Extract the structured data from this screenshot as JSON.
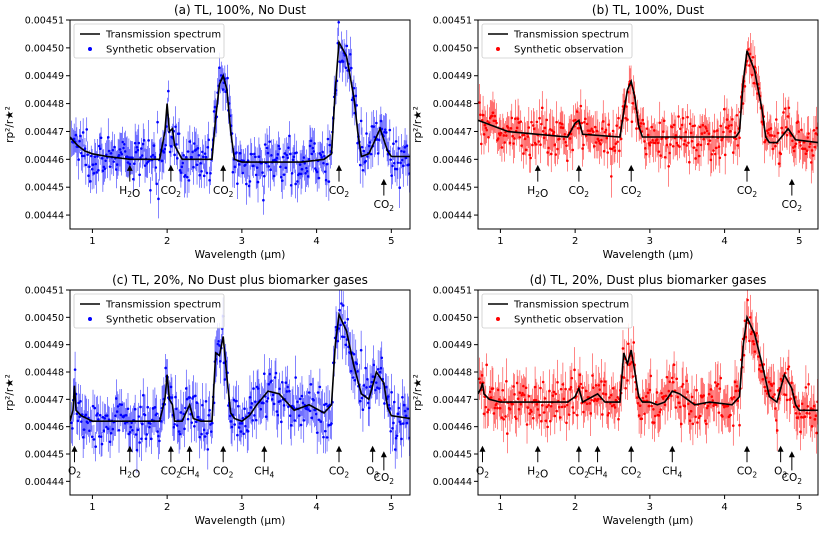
{
  "chart_data": [
    {
      "type": "line+scatter",
      "title": "(a) TL, 100%, No Dust",
      "xlabel": "Wavelength (μm)",
      "ylabel": "rp²/r★²",
      "xlim": [
        0.7,
        5.25
      ],
      "ylim": [
        0.004435,
        0.00451
      ],
      "xticks": [
        1,
        2,
        3,
        4,
        5
      ],
      "yticks": [
        0.00444,
        0.00445,
        0.00446,
        0.00447,
        0.00448,
        0.00449,
        0.0045,
        0.00451
      ],
      "legend": {
        "position": "top-left",
        "entries": [
          "Transmission spectrum",
          "Synthetic observation"
        ]
      },
      "obs_color": "#0000ff",
      "noise": 4.5e-06,
      "spectrum": [
        [
          0.7,
          0.004468
        ],
        [
          0.8,
          0.004465
        ],
        [
          0.9,
          0.004463
        ],
        [
          1.0,
          0.004462
        ],
        [
          1.2,
          0.004461
        ],
        [
          1.5,
          0.00446
        ],
        [
          1.9,
          0.00446
        ],
        [
          1.97,
          0.00447
        ],
        [
          2.0,
          0.00448
        ],
        [
          2.03,
          0.00447
        ],
        [
          2.07,
          0.004471
        ],
        [
          2.1,
          0.004465
        ],
        [
          2.2,
          0.00446
        ],
        [
          2.6,
          0.00446
        ],
        [
          2.65,
          0.004475
        ],
        [
          2.7,
          0.004487
        ],
        [
          2.75,
          0.00449
        ],
        [
          2.8,
          0.004485
        ],
        [
          2.85,
          0.00447
        ],
        [
          2.9,
          0.00446
        ],
        [
          3.0,
          0.004459
        ],
        [
          3.3,
          0.004459
        ],
        [
          3.8,
          0.004459
        ],
        [
          4.1,
          0.00446
        ],
        [
          4.2,
          0.004462
        ],
        [
          4.25,
          0.004485
        ],
        [
          4.3,
          0.004502
        ],
        [
          4.4,
          0.004497
        ],
        [
          4.5,
          0.004482
        ],
        [
          4.55,
          0.00447
        ],
        [
          4.6,
          0.004461
        ],
        [
          4.7,
          0.004462
        ],
        [
          4.85,
          0.004471
        ],
        [
          4.95,
          0.004463
        ],
        [
          5.0,
          0.004461
        ],
        [
          5.25,
          0.004461
        ]
      ],
      "arrows": [
        {
          "x": 1.5,
          "label": "H₂O",
          "yhead": 0.004458,
          "ytail": 0.004452,
          "ylabel": 0.004449
        },
        {
          "x": 2.05,
          "label": "CO₂",
          "yhead": 0.004458,
          "ytail": 0.004452,
          "ylabel": 0.004449
        },
        {
          "x": 2.75,
          "label": "CO₂",
          "yhead": 0.004458,
          "ytail": 0.004452,
          "ylabel": 0.004449
        },
        {
          "x": 4.3,
          "label": "CO₂",
          "yhead": 0.004458,
          "ytail": 0.004452,
          "ylabel": 0.004449
        },
        {
          "x": 4.9,
          "label": "CO₂",
          "yhead": 0.004453,
          "ytail": 0.004447,
          "ylabel": 0.004444
        }
      ]
    },
    {
      "type": "line+scatter",
      "title": "(b) TL, 100%, Dust",
      "xlabel": "Wavelength (μm)",
      "ylabel": "rp²/r★²",
      "xlim": [
        0.7,
        5.25
      ],
      "ylim": [
        0.004435,
        0.00451
      ],
      "xticks": [
        1,
        2,
        3,
        4,
        5
      ],
      "yticks": [
        0.00444,
        0.00445,
        0.00446,
        0.00447,
        0.00448,
        0.00449,
        0.0045,
        0.00451
      ],
      "legend": {
        "position": "top-left",
        "entries": [
          "Transmission spectrum",
          "Synthetic observation"
        ]
      },
      "obs_color": "#ff0000",
      "noise": 4.5e-06,
      "spectrum": [
        [
          0.7,
          0.004474
        ],
        [
          0.9,
          0.004472
        ],
        [
          1.1,
          0.00447
        ],
        [
          1.5,
          0.004469
        ],
        [
          1.9,
          0.004468
        ],
        [
          2.0,
          0.004473
        ],
        [
          2.05,
          0.004474
        ],
        [
          2.1,
          0.004469
        ],
        [
          2.6,
          0.004468
        ],
        [
          2.65,
          0.004477
        ],
        [
          2.7,
          0.004485
        ],
        [
          2.75,
          0.004488
        ],
        [
          2.8,
          0.004482
        ],
        [
          2.85,
          0.004472
        ],
        [
          2.9,
          0.004468
        ],
        [
          3.5,
          0.004468
        ],
        [
          4.15,
          0.004468
        ],
        [
          4.2,
          0.00447
        ],
        [
          4.25,
          0.004488
        ],
        [
          4.3,
          0.004499
        ],
        [
          4.4,
          0.004492
        ],
        [
          4.5,
          0.004478
        ],
        [
          4.55,
          0.004468
        ],
        [
          4.6,
          0.004466
        ],
        [
          4.7,
          0.004466
        ],
        [
          4.85,
          0.004471
        ],
        [
          4.95,
          0.004467
        ],
        [
          5.25,
          0.004466
        ]
      ],
      "arrows": [
        {
          "x": 1.5,
          "label": "H₂O",
          "yhead": 0.004458,
          "ytail": 0.004452,
          "ylabel": 0.004449
        },
        {
          "x": 2.05,
          "label": "CO₂",
          "yhead": 0.004458,
          "ytail": 0.004452,
          "ylabel": 0.004449
        },
        {
          "x": 2.75,
          "label": "CO₂",
          "yhead": 0.004458,
          "ytail": 0.004452,
          "ylabel": 0.004449
        },
        {
          "x": 4.3,
          "label": "CO₂",
          "yhead": 0.004458,
          "ytail": 0.004452,
          "ylabel": 0.004449
        },
        {
          "x": 4.9,
          "label": "CO₂",
          "yhead": 0.004453,
          "ytail": 0.004447,
          "ylabel": 0.004444
        }
      ]
    },
    {
      "type": "line+scatter",
      "title": "(c) TL, 20%, No Dust plus biomarker gases",
      "xlabel": "Wavelength (μm)",
      "ylabel": "rp²/r★²",
      "xlim": [
        0.7,
        5.25
      ],
      "ylim": [
        0.004435,
        0.00451
      ],
      "xticks": [
        1,
        2,
        3,
        4,
        5
      ],
      "yticks": [
        0.00444,
        0.00445,
        0.00446,
        0.00447,
        0.00448,
        0.00449,
        0.0045,
        0.00451
      ],
      "legend": {
        "position": "top-left",
        "entries": [
          "Transmission spectrum",
          "Synthetic observation"
        ]
      },
      "obs_color": "#0000ff",
      "noise": 5e-06,
      "spectrum": [
        [
          0.7,
          0.004462
        ],
        [
          0.74,
          0.004466
        ],
        [
          0.76,
          0.004475
        ],
        [
          0.78,
          0.004466
        ],
        [
          0.85,
          0.004464
        ],
        [
          1.0,
          0.004462
        ],
        [
          1.3,
          0.004462
        ],
        [
          1.6,
          0.004462
        ],
        [
          1.9,
          0.004462
        ],
        [
          1.97,
          0.00447
        ],
        [
          2.0,
          0.004479
        ],
        [
          2.03,
          0.00447
        ],
        [
          2.07,
          0.004468
        ],
        [
          2.1,
          0.004462
        ],
        [
          2.2,
          0.004462
        ],
        [
          2.3,
          0.004468
        ],
        [
          2.35,
          0.004463
        ],
        [
          2.45,
          0.004462
        ],
        [
          2.6,
          0.004462
        ],
        [
          2.65,
          0.004487
        ],
        [
          2.7,
          0.004486
        ],
        [
          2.75,
          0.004493
        ],
        [
          2.8,
          0.004478
        ],
        [
          2.85,
          0.004465
        ],
        [
          2.9,
          0.004463
        ],
        [
          3.0,
          0.004462
        ],
        [
          3.1,
          0.004464
        ],
        [
          3.2,
          0.004468
        ],
        [
          3.35,
          0.004473
        ],
        [
          3.5,
          0.004472
        ],
        [
          3.7,
          0.004466
        ],
        [
          3.9,
          0.004468
        ],
        [
          4.1,
          0.004465
        ],
        [
          4.2,
          0.004468
        ],
        [
          4.25,
          0.00449
        ],
        [
          4.3,
          0.004501
        ],
        [
          4.4,
          0.004495
        ],
        [
          4.5,
          0.004482
        ],
        [
          4.6,
          0.004472
        ],
        [
          4.7,
          0.00447
        ],
        [
          4.8,
          0.00448
        ],
        [
          4.9,
          0.004476
        ],
        [
          4.95,
          0.004467
        ],
        [
          5.0,
          0.004464
        ],
        [
          5.25,
          0.004463
        ]
      ],
      "arrows": [
        {
          "x": 0.76,
          "label": "O₂",
          "yhead": 0.004453,
          "ytail": 0.004447,
          "ylabel": 0.004444
        },
        {
          "x": 1.5,
          "label": "H₂O",
          "yhead": 0.004453,
          "ytail": 0.004447,
          "ylabel": 0.004444
        },
        {
          "x": 2.05,
          "label": "CO₂",
          "yhead": 0.004453,
          "ytail": 0.004447,
          "ylabel": 0.004444
        },
        {
          "x": 2.3,
          "label": "CH₄",
          "yhead": 0.004453,
          "ytail": 0.004447,
          "ylabel": 0.004444
        },
        {
          "x": 2.75,
          "label": "CO₂",
          "yhead": 0.004453,
          "ytail": 0.004447,
          "ylabel": 0.004444
        },
        {
          "x": 3.3,
          "label": "CH₄",
          "yhead": 0.004453,
          "ytail": 0.004447,
          "ylabel": 0.004444
        },
        {
          "x": 4.3,
          "label": "CO₂",
          "yhead": 0.004453,
          "ytail": 0.004447,
          "ylabel": 0.004444
        },
        {
          "x": 4.75,
          "label": "O₃",
          "yhead": 0.004453,
          "ytail": 0.004447,
          "ylabel": 0.004444
        },
        {
          "x": 4.9,
          "label": "CO₂",
          "yhead": 0.004451,
          "ytail": 0.004444,
          "ylabel": 0.0044415
        }
      ]
    },
    {
      "type": "line+scatter",
      "title": "(d) TL, 20%, Dust plus biomarker gases",
      "xlabel": "Wavelength (μm)",
      "ylabel": "rp²/r★²",
      "xlim": [
        0.7,
        5.25
      ],
      "ylim": [
        0.004435,
        0.00451
      ],
      "xticks": [
        1,
        2,
        3,
        4,
        5
      ],
      "yticks": [
        0.00444,
        0.00445,
        0.00446,
        0.00447,
        0.00448,
        0.00449,
        0.0045,
        0.00451
      ],
      "legend": {
        "position": "top-left",
        "entries": [
          "Transmission spectrum",
          "Synthetic observation"
        ]
      },
      "obs_color": "#ff0000",
      "noise": 5e-06,
      "spectrum": [
        [
          0.7,
          0.004472
        ],
        [
          0.74,
          0.004474
        ],
        [
          0.76,
          0.004476
        ],
        [
          0.78,
          0.004472
        ],
        [
          0.85,
          0.00447
        ],
        [
          1.0,
          0.004469
        ],
        [
          1.5,
          0.004469
        ],
        [
          1.9,
          0.004469
        ],
        [
          2.0,
          0.004471
        ],
        [
          2.05,
          0.004474
        ],
        [
          2.1,
          0.004469
        ],
        [
          2.3,
          0.004472
        ],
        [
          2.4,
          0.004469
        ],
        [
          2.6,
          0.004469
        ],
        [
          2.65,
          0.004487
        ],
        [
          2.7,
          0.004483
        ],
        [
          2.75,
          0.004488
        ],
        [
          2.8,
          0.00448
        ],
        [
          2.85,
          0.004471
        ],
        [
          2.9,
          0.004469
        ],
        [
          3.0,
          0.004469
        ],
        [
          3.1,
          0.004468
        ],
        [
          3.2,
          0.004469
        ],
        [
          3.3,
          0.004473
        ],
        [
          3.4,
          0.004472
        ],
        [
          3.6,
          0.004468
        ],
        [
          3.8,
          0.004469
        ],
        [
          4.1,
          0.004468
        ],
        [
          4.2,
          0.004471
        ],
        [
          4.25,
          0.00449
        ],
        [
          4.3,
          0.0045
        ],
        [
          4.4,
          0.004494
        ],
        [
          4.5,
          0.004483
        ],
        [
          4.6,
          0.004471
        ],
        [
          4.7,
          0.004469
        ],
        [
          4.8,
          0.004479
        ],
        [
          4.9,
          0.004474
        ],
        [
          4.95,
          0.004468
        ],
        [
          5.0,
          0.004466
        ],
        [
          5.25,
          0.004466
        ]
      ],
      "arrows": [
        {
          "x": 0.76,
          "label": "O₂",
          "yhead": 0.004453,
          "ytail": 0.004447,
          "ylabel": 0.004444
        },
        {
          "x": 1.5,
          "label": "H₂O",
          "yhead": 0.004453,
          "ytail": 0.004447,
          "ylabel": 0.004444
        },
        {
          "x": 2.05,
          "label": "CO₂",
          "yhead": 0.004453,
          "ytail": 0.004447,
          "ylabel": 0.004444
        },
        {
          "x": 2.3,
          "label": "CH₄",
          "yhead": 0.004453,
          "ytail": 0.004447,
          "ylabel": 0.004444
        },
        {
          "x": 2.75,
          "label": "CO₂",
          "yhead": 0.004453,
          "ytail": 0.004447,
          "ylabel": 0.004444
        },
        {
          "x": 3.3,
          "label": "CH₄",
          "yhead": 0.004453,
          "ytail": 0.004447,
          "ylabel": 0.004444
        },
        {
          "x": 4.3,
          "label": "CO₂",
          "yhead": 0.004453,
          "ytail": 0.004447,
          "ylabel": 0.004444
        },
        {
          "x": 4.75,
          "label": "O₃",
          "yhead": 0.004453,
          "ytail": 0.004447,
          "ylabel": 0.004444
        },
        {
          "x": 4.9,
          "label": "CO₂",
          "yhead": 0.004451,
          "ytail": 0.004444,
          "ylabel": 0.0044415
        }
      ]
    }
  ]
}
